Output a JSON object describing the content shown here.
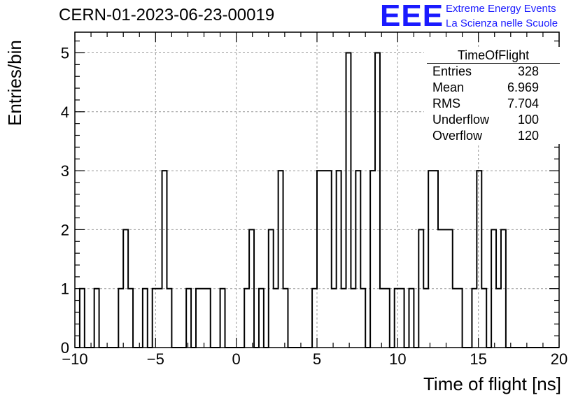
{
  "title": "CERN-01-2023-06-23-00019",
  "logo": {
    "text": "EEE",
    "line1": "Extreme Energy Events",
    "line2": "La Scienza nelle Scuole",
    "color": "#1a1aff"
  },
  "stats": {
    "name": "TimeOfFlight",
    "rows": [
      {
        "label": "Entries",
        "value": "328"
      },
      {
        "label": "Mean",
        "value": "6.969"
      },
      {
        "label": "RMS",
        "value": "7.704"
      },
      {
        "label": "Underflow",
        "value": "100"
      },
      {
        "label": "Overflow",
        "value": "120"
      }
    ]
  },
  "chart_data": {
    "type": "histogram",
    "xlabel": "Time of flight [ns]",
    "ylabel": "Entries/bin",
    "xlim": [
      -10,
      20
    ],
    "ylim": [
      0,
      5.35
    ],
    "bin_width": 0.3,
    "grid": true,
    "x_ticks": [
      -10,
      -5,
      0,
      5,
      10,
      15,
      20
    ],
    "x_tick_labels": [
      "−10",
      "−5",
      "0",
      "5",
      "10",
      "15",
      "20"
    ],
    "y_ticks": [
      0,
      1,
      2,
      3,
      4,
      5
    ],
    "y_tick_labels": [
      "0",
      "1",
      "2",
      "3",
      "4",
      "5"
    ],
    "values": [
      0,
      1,
      0,
      0,
      1,
      0,
      0,
      0,
      0,
      1,
      2,
      1,
      0,
      0,
      1,
      0,
      1,
      1,
      3,
      1,
      0,
      0,
      0,
      1,
      0,
      1,
      1,
      1,
      0,
      0,
      1,
      0,
      0,
      0,
      0,
      1,
      2,
      0,
      1,
      0,
      2,
      1,
      3,
      1,
      0,
      0,
      0,
      0,
      0,
      1,
      3,
      3,
      3,
      1,
      3,
      1,
      5,
      1,
      3,
      1,
      0,
      3,
      5,
      1,
      1,
      0,
      1,
      1,
      0,
      1,
      0,
      2,
      1,
      3,
      3,
      2,
      2,
      2,
      1,
      1,
      0,
      0,
      1,
      3,
      1,
      0,
      2,
      1,
      2,
      0
    ],
    "line_color": "#000000",
    "grid_color": "#9a9a9a"
  }
}
